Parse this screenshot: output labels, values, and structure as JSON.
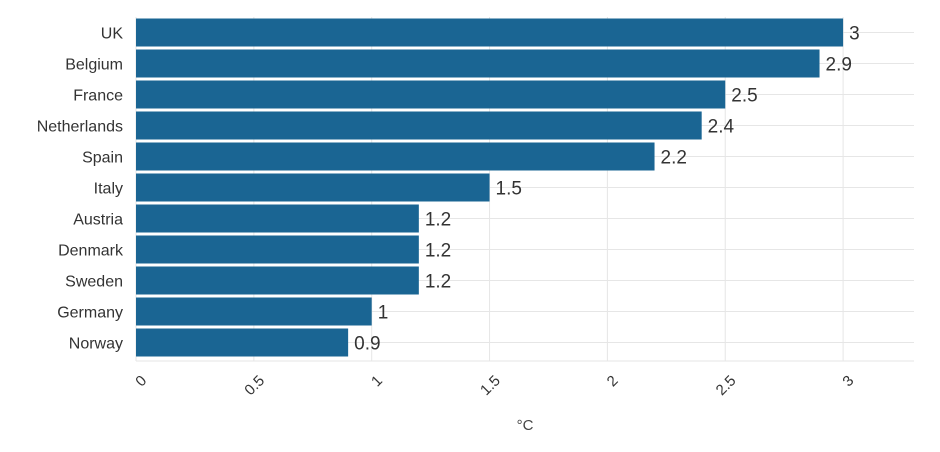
{
  "chart_data": {
    "type": "bar",
    "orientation": "horizontal",
    "categories": [
      "UK",
      "Belgium",
      "France",
      "Netherlands",
      "Spain",
      "Italy",
      "Austria",
      "Denmark",
      "Sweden",
      "Germany",
      "Norway"
    ],
    "values": [
      3,
      2.9,
      2.5,
      2.4,
      2.2,
      1.5,
      1.2,
      1.2,
      1.2,
      1,
      0.9
    ],
    "value_labels": [
      "3",
      "2.9",
      "2.5",
      "2.4",
      "2.2",
      "1.5",
      "1.2",
      "1.2",
      "1.2",
      "1",
      "0.9"
    ],
    "xticks": [
      "0",
      "0.5",
      "1",
      "1.5",
      "2",
      "2.5",
      "3"
    ],
    "xlabel": "°C",
    "ylabel": "",
    "xlim": [
      0,
      3.3
    ],
    "grid": true,
    "bar_color": "#1a6593"
  }
}
